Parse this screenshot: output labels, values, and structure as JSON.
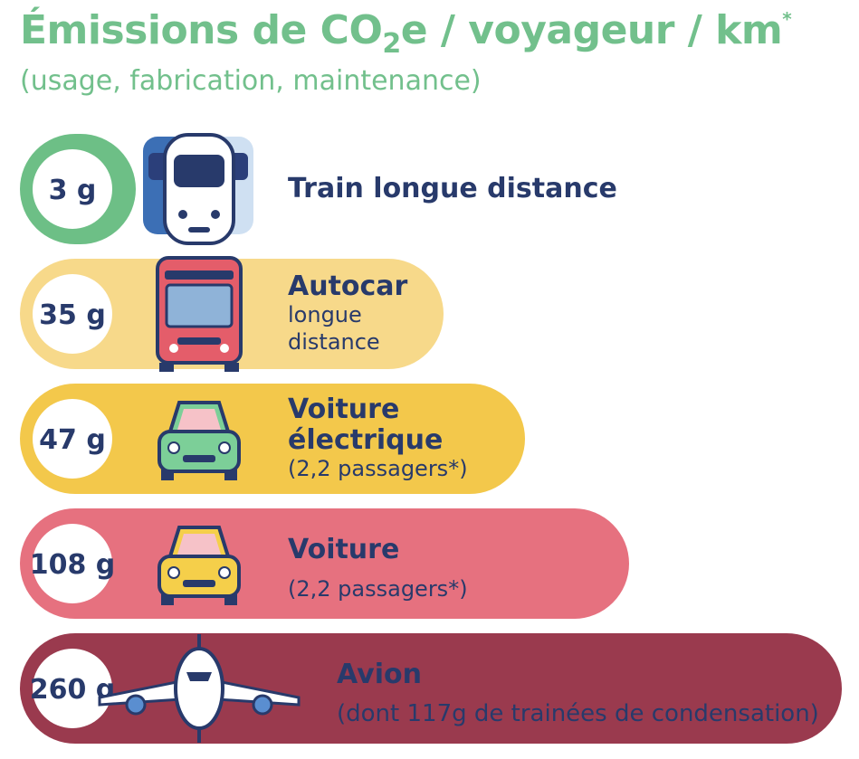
{
  "chart_data": {
    "type": "bar",
    "title": "Émissions de CO2e / voyageur / km*",
    "title_parts": {
      "pre": "Émissions de CO",
      "sub": "2",
      "post": "e / voyageur / km",
      "sup": "*"
    },
    "subtitle": "(usage, fabrication, maintenance)",
    "unit": "g",
    "items": [
      {
        "value": 3,
        "value_label": "3 g",
        "label": "Train longue distance",
        "sublabel": [],
        "color": "#6dbf86",
        "icon": "train-icon"
      },
      {
        "value": 35,
        "value_label": "35 g",
        "label": "Autocar",
        "sublabel": [
          "longue",
          "distance"
        ],
        "color": "#f7d98a",
        "icon": "bus-icon"
      },
      {
        "value": 47,
        "value_label": "47 g",
        "label": "Voiture électrique",
        "label_lines": [
          "Voiture",
          "électrique"
        ],
        "sublabel": [
          "(2,2 passagers*)"
        ],
        "color": "#f3c84b",
        "icon": "electric-car-icon"
      },
      {
        "value": 108,
        "value_label": "108 g",
        "label": "Voiture",
        "sublabel": [
          "(2,2 passagers*)"
        ],
        "color": "#e6717f",
        "icon": "car-icon"
      },
      {
        "value": 260,
        "value_label": "260 g",
        "label": "Avion",
        "sublabel": [
          "(dont 117g de trainées de condensation)"
        ],
        "color": "#9a3a4e",
        "icon": "airplane-icon"
      }
    ]
  }
}
